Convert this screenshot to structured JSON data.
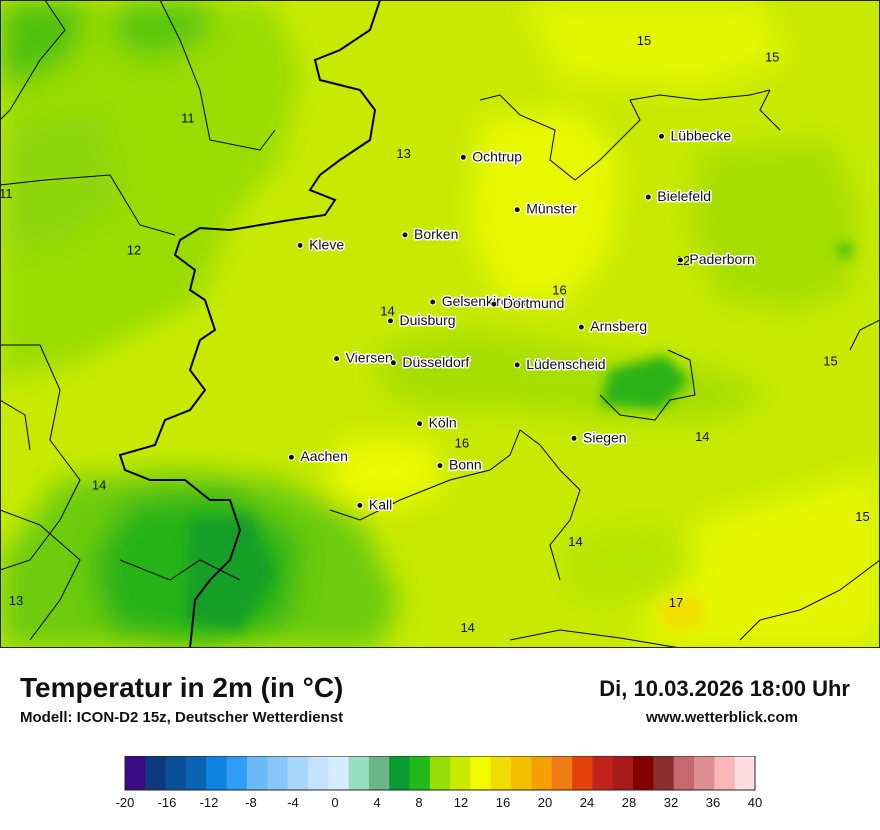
{
  "title": "Temperatur in 2m (in °C)",
  "model": "Modell: ICON-D2 15z, Deutscher Wetterdienst",
  "datetime": "Di, 10.03.2026 18:00 Uhr",
  "website": "www.wetterblick.com",
  "cities": [
    {
      "name": "Ochtrup",
      "x": 7.26,
      "y": 52.21
    },
    {
      "name": "Lübbecke",
      "x": 8.62,
      "y": 52.31
    },
    {
      "name": "Bielefeld",
      "x": 8.53,
      "y": 52.02
    },
    {
      "name": "Münster",
      "x": 7.63,
      "y": 51.96
    },
    {
      "name": "Borken",
      "x": 6.86,
      "y": 51.84
    },
    {
      "name": "Kleve",
      "x": 6.14,
      "y": 51.79
    },
    {
      "name": "Paderborn",
      "x": 8.75,
      "y": 51.72
    },
    {
      "name": "Gelsenkirchen",
      "x": 7.05,
      "y": 51.52
    },
    {
      "name": "Dortmund",
      "x": 7.47,
      "y": 51.51
    },
    {
      "name": "Duisburg",
      "x": 6.76,
      "y": 51.43
    },
    {
      "name": "Arnsberg",
      "x": 8.07,
      "y": 51.4
    },
    {
      "name": "Viersen",
      "x": 6.39,
      "y": 51.25
    },
    {
      "name": "Düsseldorf",
      "x": 6.78,
      "y": 51.23
    },
    {
      "name": "Lüdenscheid",
      "x": 7.63,
      "y": 51.22
    },
    {
      "name": "Köln",
      "x": 6.96,
      "y": 50.94
    },
    {
      "name": "Siegen",
      "x": 8.02,
      "y": 50.87
    },
    {
      "name": "Aachen",
      "x": 6.08,
      "y": 50.78
    },
    {
      "name": "Bonn",
      "x": 7.1,
      "y": 50.74
    },
    {
      "name": "Kall",
      "x": 6.55,
      "y": 50.55
    }
  ],
  "isotherm_labels": [
    {
      "value": "15",
      "x": 8.5,
      "y": 52.77
    },
    {
      "value": "15",
      "x": 9.38,
      "y": 52.69
    },
    {
      "value": "11",
      "x": 5.37,
      "y": 52.4
    },
    {
      "value": "13",
      "x": 6.85,
      "y": 52.23
    },
    {
      "value": "11",
      "x": 4.12,
      "y": 52.04
    },
    {
      "value": "12",
      "x": 5.0,
      "y": 51.77
    },
    {
      "value": "16",
      "x": 7.92,
      "y": 51.58
    },
    {
      "value": "12",
      "x": 8.77,
      "y": 51.72
    },
    {
      "value": "14",
      "x": 6.74,
      "y": 51.48
    },
    {
      "value": "15",
      "x": 9.78,
      "y": 51.24
    },
    {
      "value": "16",
      "x": 7.25,
      "y": 50.85
    },
    {
      "value": "14",
      "x": 8.9,
      "y": 50.88
    },
    {
      "value": "14",
      "x": 4.76,
      "y": 50.65
    },
    {
      "value": "15",
      "x": 10.0,
      "y": 50.5
    },
    {
      "value": "14",
      "x": 8.03,
      "y": 50.38
    },
    {
      "value": "17",
      "x": 8.72,
      "y": 50.09
    },
    {
      "value": "13",
      "x": 4.19,
      "y": 50.1
    },
    {
      "value": "14",
      "x": 7.29,
      "y": 49.97
    }
  ],
  "legend": {
    "unit": "°C",
    "ticks": [
      "-20",
      "-16",
      "-12",
      "-8",
      "-4",
      "0",
      "4",
      "8",
      "12",
      "16",
      "20",
      "24",
      "28",
      "32",
      "36",
      "40"
    ],
    "colors": [
      "#3a0b84",
      "#0d3a7e",
      "#0c4f96",
      "#0a63b3",
      "#0d84e0",
      "#2f9cf5",
      "#6dbaf8",
      "#88c6fa",
      "#a8d6fb",
      "#c4e2fd",
      "#d6ebfe",
      "#98dfc0",
      "#6cb68a",
      "#0a9b30",
      "#21ba1c",
      "#96dc07",
      "#c8ec00",
      "#f0fa00",
      "#f1dc00",
      "#f3c000",
      "#f4a100",
      "#f07d14",
      "#e4420b",
      "#c0221c",
      "#a81a1a",
      "#830000",
      "#8c2d30",
      "#c46a6e",
      "#dc8f92",
      "#fab6b8",
      "#ffdde0"
    ]
  }
}
